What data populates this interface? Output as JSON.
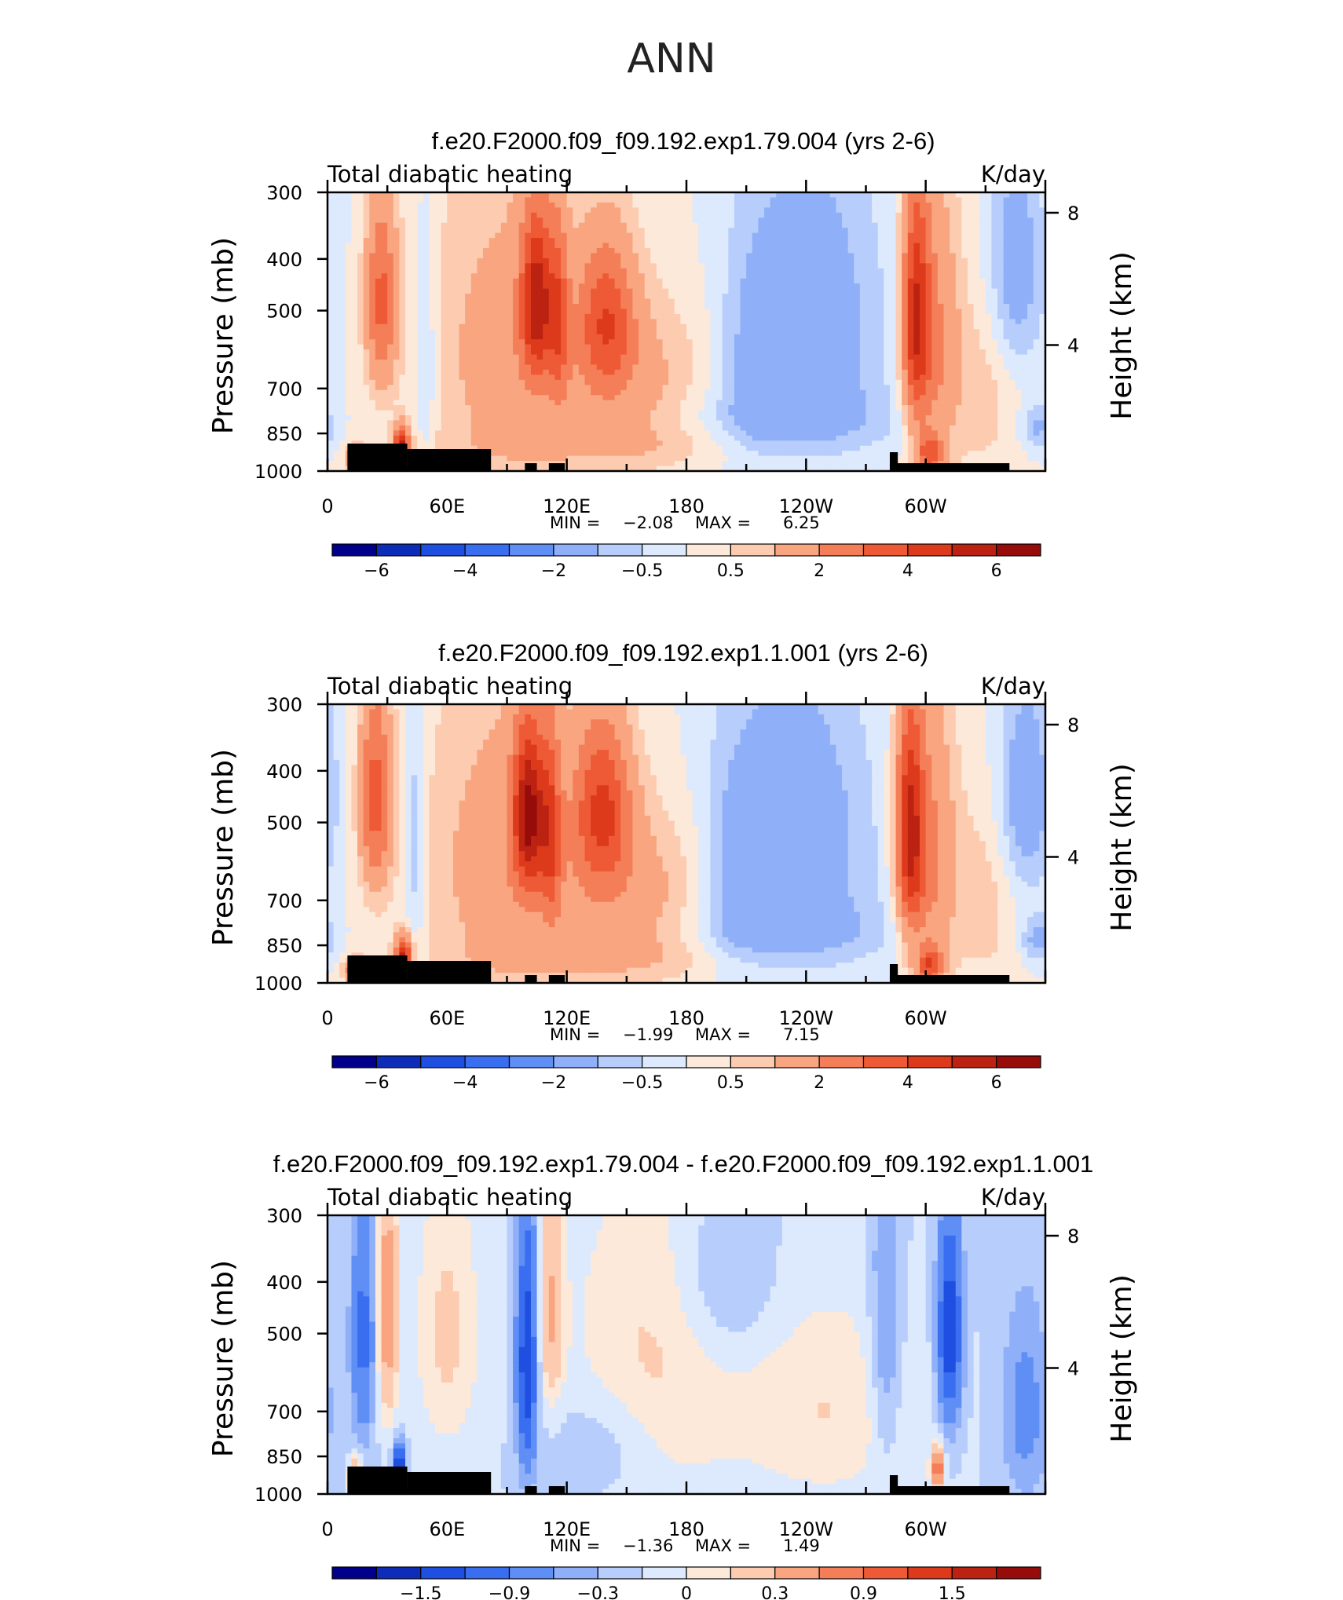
{
  "figure": {
    "title": "ANN"
  },
  "chart_data": [
    {
      "type": "heatmap",
      "title": "f.e20.F2000.f09_f09.192.exp1.79.004 (yrs 2-6)",
      "left_label": "Total diabatic heating",
      "right_label": "K/day",
      "ylabel": "Pressure (mb)",
      "ylabel_right": "Height (km)",
      "x_ticks": [
        {
          "lon": 0,
          "label": "0"
        },
        {
          "lon": 60,
          "label": "60E"
        },
        {
          "lon": 120,
          "label": "120E"
        },
        {
          "lon": 180,
          "label": "180"
        },
        {
          "lon": 240,
          "label": "120W"
        },
        {
          "lon": 300,
          "label": "60W"
        }
      ],
      "xlim": [
        0,
        360
      ],
      "y_ticks": [
        300,
        400,
        500,
        700,
        850,
        1000
      ],
      "ylim": [
        1000,
        300
      ],
      "height_ticks": [
        {
          "km": 8,
          "label": "8"
        },
        {
          "km": 4,
          "label": "4"
        }
      ],
      "min_label": "MIN =",
      "min_value": "-2.08",
      "max_label": "MAX =",
      "max_value": "6.25",
      "colorbar": {
        "levels": [
          -7,
          -6,
          -5,
          -4,
          -3,
          -2,
          -1,
          -0.5,
          0,
          0.5,
          1,
          2,
          3,
          4,
          5,
          6,
          7
        ],
        "labels": [
          "−6",
          "−4",
          "−2",
          "−0.5",
          "0.5",
          "2",
          "4",
          "6"
        ],
        "colors": [
          "#00008b",
          "#0d2db8",
          "#1f4fe0",
          "#3a6ef0",
          "#5f8ef5",
          "#8fb0f8",
          "#b7cdfb",
          "#dde9fd",
          "#fde9d9",
          "#fccbb0",
          "#f8a580",
          "#f47e58",
          "#ef5a36",
          "#dd3a1b",
          "#bb2211",
          "#960c0a"
        ]
      }
    },
    {
      "type": "heatmap",
      "title": "f.e20.F2000.f09_f09.192.exp1.1.001 (yrs 2-6)",
      "left_label": "Total diabatic heating",
      "right_label": "K/day",
      "ylabel": "Pressure (mb)",
      "ylabel_right": "Height (km)",
      "x_ticks": [
        {
          "lon": 0,
          "label": "0"
        },
        {
          "lon": 60,
          "label": "60E"
        },
        {
          "lon": 120,
          "label": "120E"
        },
        {
          "lon": 180,
          "label": "180"
        },
        {
          "lon": 240,
          "label": "120W"
        },
        {
          "lon": 300,
          "label": "60W"
        }
      ],
      "xlim": [
        0,
        360
      ],
      "y_ticks": [
        300,
        400,
        500,
        700,
        850,
        1000
      ],
      "ylim": [
        1000,
        300
      ],
      "height_ticks": [
        {
          "km": 8,
          "label": "8"
        },
        {
          "km": 4,
          "label": "4"
        }
      ],
      "min_label": "MIN =",
      "min_value": "-1.99",
      "max_label": "MAX =",
      "max_value": "7.15",
      "colorbar": {
        "levels": [
          -7,
          -6,
          -5,
          -4,
          -3,
          -2,
          -1,
          -0.5,
          0,
          0.5,
          1,
          2,
          3,
          4,
          5,
          6,
          7
        ],
        "labels": [
          "−6",
          "−4",
          "−2",
          "−0.5",
          "0.5",
          "2",
          "4",
          "6"
        ],
        "colors": [
          "#00008b",
          "#0d2db8",
          "#1f4fe0",
          "#3a6ef0",
          "#5f8ef5",
          "#8fb0f8",
          "#b7cdfb",
          "#dde9fd",
          "#fde9d9",
          "#fccbb0",
          "#f8a580",
          "#f47e58",
          "#ef5a36",
          "#dd3a1b",
          "#bb2211",
          "#960c0a"
        ]
      }
    },
    {
      "type": "heatmap",
      "title": "f.e20.F2000.f09_f09.192.exp1.79.004 - f.e20.F2000.f09_f09.192.exp1.1.001",
      "left_label": "Total diabatic heating",
      "right_label": "K/day",
      "ylabel": "Pressure (mb)",
      "ylabel_right": "Height (km)",
      "x_ticks": [
        {
          "lon": 0,
          "label": "0"
        },
        {
          "lon": 60,
          "label": "60E"
        },
        {
          "lon": 120,
          "label": "120E"
        },
        {
          "lon": 180,
          "label": "180"
        },
        {
          "lon": 240,
          "label": "120W"
        },
        {
          "lon": 300,
          "label": "60W"
        }
      ],
      "xlim": [
        0,
        360
      ],
      "y_ticks": [
        300,
        400,
        500,
        700,
        850,
        1000
      ],
      "ylim": [
        1000,
        300
      ],
      "height_ticks": [
        {
          "km": 8,
          "label": "8"
        },
        {
          "km": 4,
          "label": "4"
        }
      ],
      "min_label": "MIN =",
      "min_value": "-1.36",
      "max_label": "MAX =",
      "max_value": "1.49",
      "colorbar": {
        "levels": [
          -1.8,
          -1.5,
          -1.2,
          -0.9,
          -0.6,
          -0.3,
          -0.15,
          0,
          0.15,
          0.3,
          0.6,
          0.9,
          1.2,
          1.5,
          1.8
        ],
        "labels": [
          "−1.5",
          "−0.9",
          "−0.3",
          "0",
          "0.3",
          "0.9",
          "1.5"
        ],
        "colors": [
          "#00008b",
          "#0d2db8",
          "#1f4fe0",
          "#3a6ef0",
          "#5f8ef5",
          "#8fb0f8",
          "#b7cdfb",
          "#dde9fd",
          "#fde9d9",
          "#fccbb0",
          "#f8a580",
          "#f47e58",
          "#ef5a36",
          "#dd3a1b",
          "#bb2211",
          "#960c0a"
        ]
      }
    }
  ]
}
